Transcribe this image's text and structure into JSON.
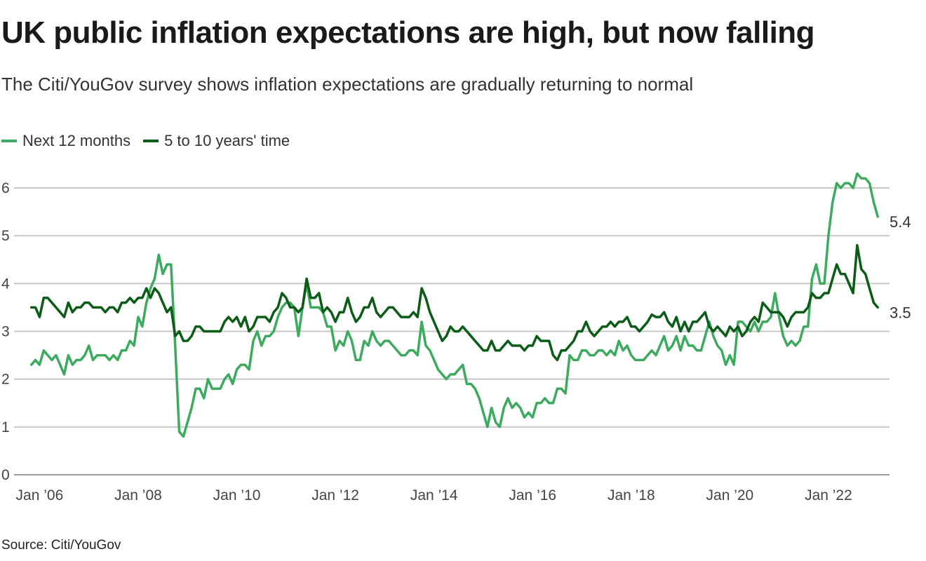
{
  "chart_data": {
    "type": "line",
    "title": "UK public inflation expectations are high, but now falling",
    "subtitle": "The Citi/YouGov survey shows inflation expectations are gradually returning to normal",
    "source": "Source: Citi/YouGov",
    "legend_position": "top-left",
    "grid": true,
    "ylim": [
      0,
      6
    ],
    "y_ticks": [
      "0",
      "1",
      "2",
      "3",
      "4",
      "5",
      "6"
    ],
    "x_ticks": [
      "Jan ’06",
      "Jan ’08",
      "Jan ’10",
      "Jan ’12",
      "Jan ’14",
      "Jan ’16",
      "Jan ’18",
      "Jan ’20",
      "Jan ’22"
    ],
    "x_start": "2005-11",
    "x_end": "2023-01",
    "frequency": "monthly",
    "series": [
      {
        "name": "Next 12 months",
        "color": "#3dab5f",
        "end_label": "5.4",
        "values": [
          2.3,
          2.4,
          2.3,
          2.6,
          2.5,
          2.4,
          2.5,
          2.3,
          2.1,
          2.5,
          2.3,
          2.4,
          2.4,
          2.5,
          2.7,
          2.4,
          2.5,
          2.5,
          2.5,
          2.4,
          2.5,
          2.4,
          2.6,
          2.6,
          2.8,
          2.7,
          3.3,
          3.1,
          3.6,
          3.9,
          4.1,
          4.6,
          4.2,
          4.4,
          4.4,
          2.7,
          0.9,
          0.8,
          1.1,
          1.4,
          1.8,
          1.8,
          1.6,
          2.0,
          1.8,
          1.8,
          1.8,
          2.0,
          2.1,
          1.9,
          2.2,
          2.3,
          2.3,
          2.2,
          2.8,
          3.0,
          2.7,
          2.9,
          2.9,
          3.0,
          3.3,
          3.5,
          3.6,
          3.6,
          3.5,
          2.9,
          3.5,
          4.0,
          3.5,
          3.5,
          3.5,
          3.4,
          3.1,
          3.1,
          2.6,
          2.8,
          2.7,
          3.0,
          2.8,
          2.4,
          2.4,
          2.8,
          2.7,
          3.0,
          2.8,
          2.7,
          2.8,
          2.8,
          2.7,
          2.6,
          2.5,
          2.5,
          2.6,
          2.6,
          2.5,
          3.2,
          2.7,
          2.6,
          2.4,
          2.2,
          2.1,
          2.0,
          2.1,
          2.1,
          2.2,
          2.3,
          1.9,
          1.9,
          1.8,
          1.6,
          1.3,
          1.0,
          1.4,
          1.1,
          1.0,
          1.4,
          1.6,
          1.4,
          1.5,
          1.4,
          1.2,
          1.3,
          1.2,
          1.5,
          1.5,
          1.6,
          1.5,
          1.5,
          1.8,
          1.8,
          1.7,
          2.5,
          2.4,
          2.4,
          2.6,
          2.6,
          2.5,
          2.5,
          2.6,
          2.6,
          2.5,
          2.6,
          2.5,
          2.8,
          2.6,
          2.7,
          2.5,
          2.4,
          2.4,
          2.4,
          2.5,
          2.6,
          2.5,
          2.7,
          2.9,
          2.6,
          2.7,
          2.9,
          2.6,
          2.9,
          2.7,
          2.7,
          2.6,
          2.6,
          2.9,
          3.2,
          2.9,
          2.7,
          2.6,
          2.3,
          2.5,
          2.3,
          3.2,
          3.2,
          3.1,
          3.0,
          3.2,
          3.0,
          3.2,
          3.2,
          3.3,
          3.8,
          3.3,
          2.9,
          2.7,
          2.8,
          2.7,
          2.8,
          3.1,
          3.1,
          4.1,
          4.4,
          4.0,
          4.0,
          5.0,
          5.7,
          6.1,
          6.0,
          6.1,
          6.1,
          6.0,
          6.3,
          6.2,
          6.2,
          6.1,
          5.7,
          5.4
        ]
      },
      {
        "name": "5 to 10 years' time",
        "color": "#0a5c17",
        "end_label": "3.5",
        "values": [
          3.5,
          3.5,
          3.3,
          3.7,
          3.7,
          3.6,
          3.5,
          3.4,
          3.3,
          3.6,
          3.4,
          3.5,
          3.5,
          3.6,
          3.6,
          3.5,
          3.5,
          3.5,
          3.4,
          3.5,
          3.5,
          3.4,
          3.6,
          3.6,
          3.7,
          3.6,
          3.7,
          3.7,
          3.9,
          3.7,
          3.9,
          3.8,
          3.6,
          3.4,
          3.5,
          2.9,
          3.0,
          2.8,
          2.8,
          2.9,
          3.1,
          3.1,
          3.0,
          3.0,
          3.0,
          3.0,
          3.0,
          3.2,
          3.3,
          3.2,
          3.3,
          3.1,
          3.3,
          3.0,
          3.1,
          3.3,
          3.3,
          3.3,
          3.2,
          3.4,
          3.5,
          3.8,
          3.7,
          3.5,
          3.5,
          3.4,
          3.5,
          4.1,
          3.7,
          3.7,
          3.8,
          3.4,
          3.5,
          3.4,
          3.2,
          3.4,
          3.4,
          3.7,
          3.4,
          3.2,
          3.3,
          3.5,
          3.5,
          3.7,
          3.4,
          3.3,
          3.4,
          3.5,
          3.5,
          3.4,
          3.3,
          3.3,
          3.3,
          3.4,
          3.3,
          3.9,
          3.7,
          3.4,
          3.2,
          3.0,
          2.8,
          2.9,
          3.1,
          3.0,
          3.0,
          3.1,
          3.0,
          2.9,
          2.8,
          2.7,
          2.6,
          2.6,
          2.8,
          2.6,
          2.6,
          2.7,
          2.8,
          2.7,
          2.7,
          2.7,
          2.6,
          2.7,
          2.7,
          2.9,
          2.8,
          2.8,
          2.8,
          2.5,
          2.4,
          2.6,
          2.6,
          2.7,
          2.8,
          3.0,
          3.0,
          3.2,
          3.0,
          2.9,
          3.0,
          3.1,
          3.1,
          3.2,
          3.1,
          3.2,
          3.2,
          3.3,
          3.1,
          3.1,
          3.0,
          3.1,
          3.2,
          3.35,
          3.3,
          3.3,
          3.4,
          3.2,
          3.1,
          3.3,
          3.0,
          3.2,
          3.0,
          3.2,
          3.2,
          3.3,
          3.4,
          3.1,
          3.0,
          3.1,
          3.0,
          2.9,
          3.1,
          3.0,
          3.1,
          2.9,
          3.0,
          3.2,
          3.3,
          3.2,
          3.6,
          3.5,
          3.4,
          3.4,
          3.4,
          3.3,
          3.1,
          3.3,
          3.4,
          3.4,
          3.4,
          3.5,
          3.8,
          3.7,
          3.7,
          3.8,
          3.8,
          4.1,
          4.4,
          4.2,
          4.2,
          4.0,
          3.8,
          4.8,
          4.3,
          4.2,
          3.9,
          3.6,
          3.5
        ]
      }
    ]
  }
}
